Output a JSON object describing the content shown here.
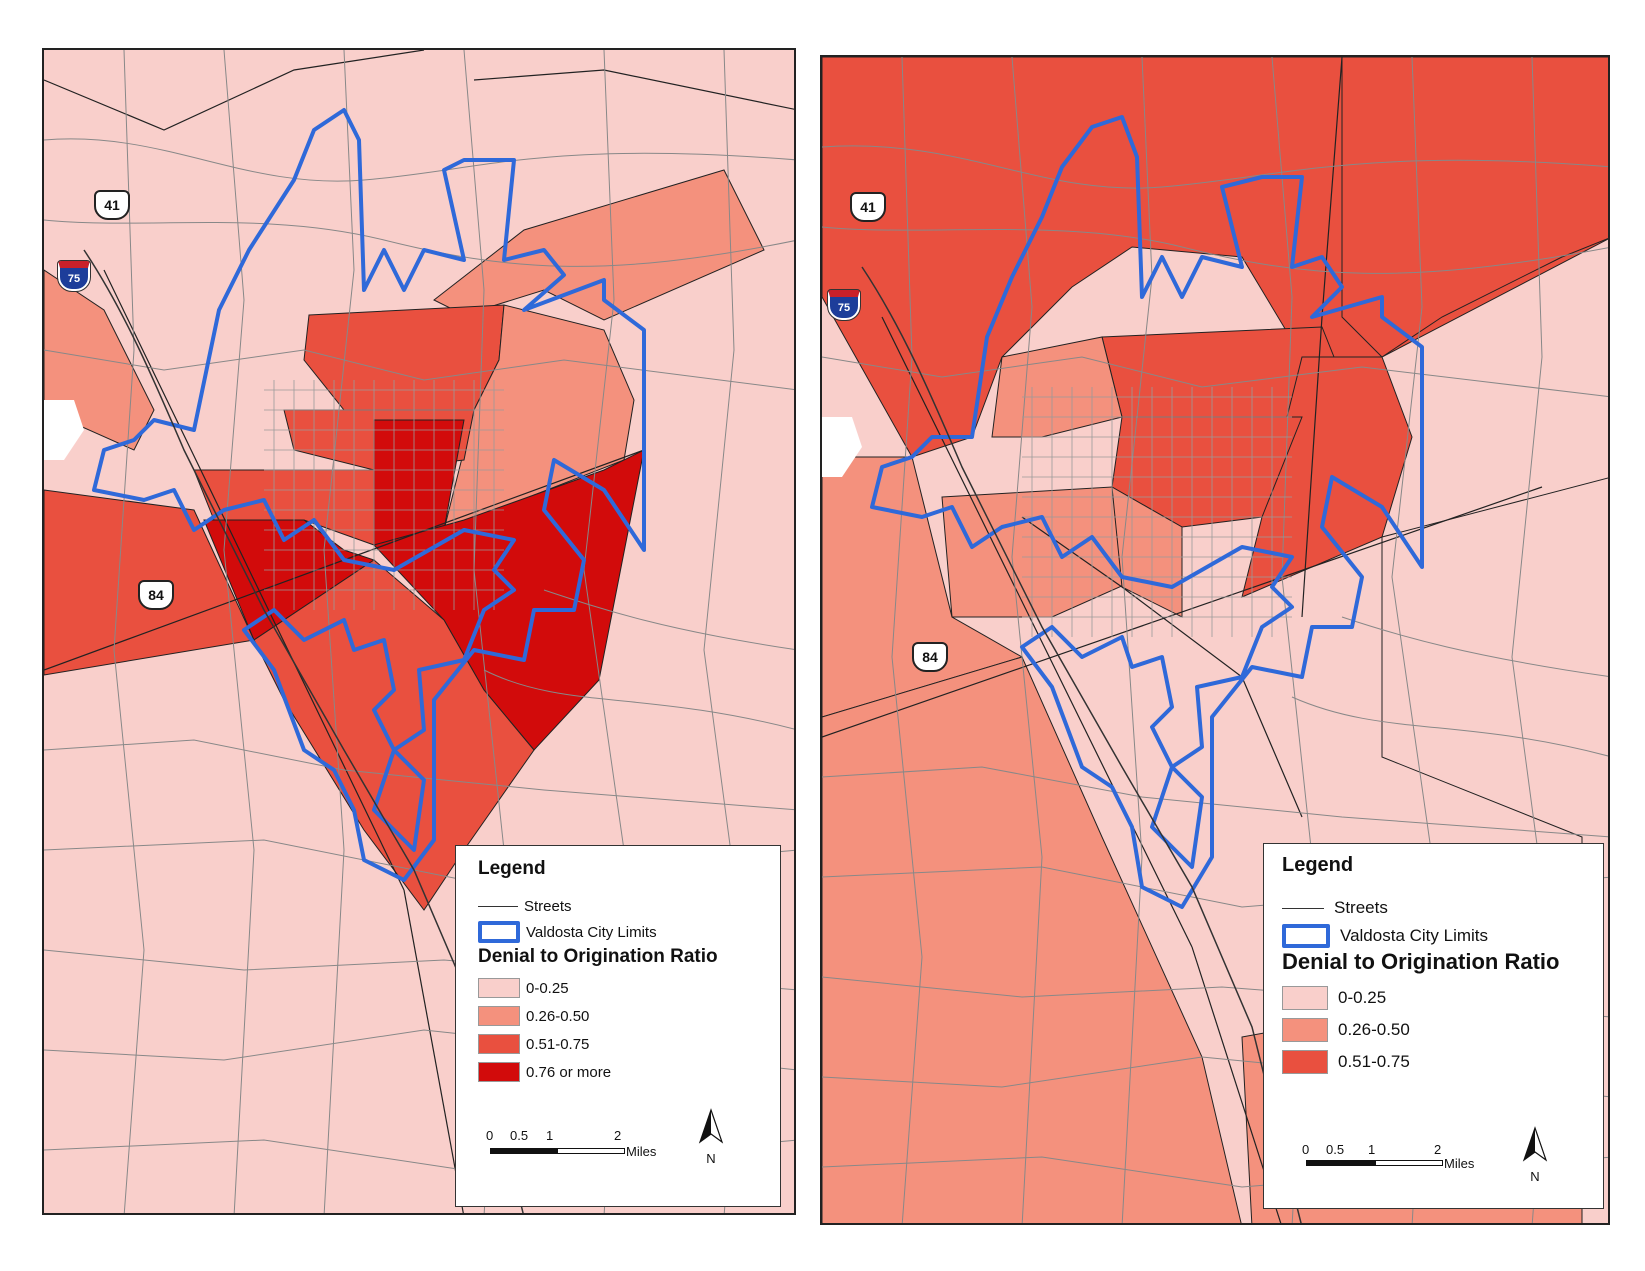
{
  "routes": {
    "us41": "41",
    "i75": "75",
    "us84": "84"
  },
  "colors": {
    "class_0_25": "#f9cfcb",
    "class_26_50": "#f4917d",
    "class_51_75": "#e9503f",
    "class_76_more": "#d20b0b",
    "city_limits": "#2f69d9",
    "streets": "#888888"
  },
  "left_map": {
    "legend": {
      "title": "Legend",
      "streets": "Streets",
      "city_limits": "Valdosta City Limits",
      "ratio_heading": "Denial to Origination Ratio",
      "classes": [
        {
          "label": "0-0.25",
          "color": "#f9cfcb"
        },
        {
          "label": "0.26-0.50",
          "color": "#f4917d"
        },
        {
          "label": "0.51-0.75",
          "color": "#e9503f"
        },
        {
          "label": "0.76 or more",
          "color": "#d20b0b"
        }
      ]
    },
    "scale": {
      "t0": "0",
      "t1": "0.5",
      "t2": "1",
      "t3": "2",
      "unit": "Miles"
    },
    "north": "N"
  },
  "right_map": {
    "legend": {
      "title": "Legend",
      "streets": "Streets",
      "city_limits": "Valdosta City Limits",
      "ratio_heading": "Denial to Origination Ratio",
      "classes": [
        {
          "label": "0-0.25",
          "color": "#f9cfcb"
        },
        {
          "label": "0.26-0.50",
          "color": "#f4917d"
        },
        {
          "label": "0.51-0.75",
          "color": "#e9503f"
        }
      ]
    },
    "scale": {
      "t0": "0",
      "t1": "0.5",
      "t2": "1",
      "t3": "2",
      "unit": "Miles"
    },
    "north": "N"
  }
}
